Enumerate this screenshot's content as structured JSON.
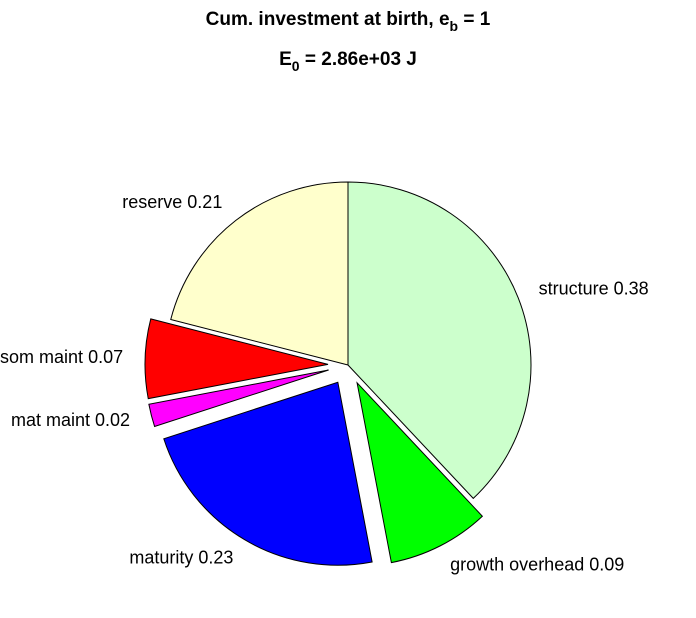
{
  "chart_data": {
    "type": "pie",
    "title": [
      "Cum. investment at birth, e",
      "b",
      " = 1"
    ],
    "subtitle": [
      "E",
      "0",
      " = 2.86e+03 J"
    ],
    "categories": [
      "structure",
      "growth overhead",
      "maturity",
      "mat maint",
      "som maint",
      "reserve"
    ],
    "values": [
      0.38,
      0.09,
      0.23,
      0.02,
      0.07,
      0.21
    ],
    "colors": [
      "#ccffcc",
      "#00ff00",
      "#0000ff",
      "#ff00ff",
      "#ff0000",
      "#ffffcc"
    ],
    "explode": [
      0,
      1,
      1,
      1,
      1,
      0
    ]
  }
}
